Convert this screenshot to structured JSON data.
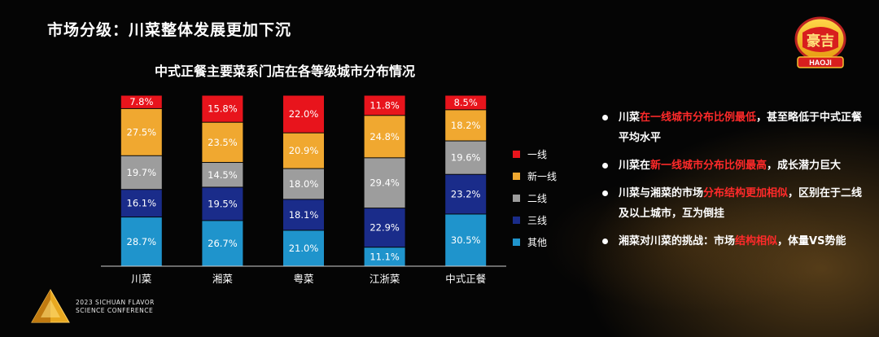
{
  "page_title": "市场分级：川菜整体发展更加下沉",
  "logo": {
    "text": "HAOJI",
    "glyph": "豪吉"
  },
  "conference": {
    "line1": "2023 SICHUAN FLAVOR",
    "line2": "SCIENCE CONFERENCE"
  },
  "colors": {
    "一线": "#e8141c",
    "新一线": "#f0a830",
    "二线": "#9d9d9d",
    "三线": "#1a2c8a",
    "其他": "#1f94cc"
  },
  "chart_data": {
    "type": "bar",
    "stacked": true,
    "title": "中式正餐主要菜系门店在各等级城市分布情况",
    "categories": [
      "川菜",
      "湘菜",
      "粤菜",
      "江浙菜",
      "中式正餐"
    ],
    "series": [
      {
        "name": "其他",
        "values": [
          28.7,
          26.7,
          21.0,
          11.1,
          30.5
        ],
        "labels": [
          "28.7%",
          "26.7%",
          "21.0%",
          "11.1%",
          "30.5%"
        ]
      },
      {
        "name": "三线",
        "values": [
          16.1,
          19.5,
          18.1,
          22.9,
          23.2
        ],
        "labels": [
          "16.1%",
          "19.5%",
          "18.1%",
          "22.9%",
          "23.2%"
        ]
      },
      {
        "name": "二线",
        "values": [
          19.7,
          14.5,
          18.0,
          29.4,
          19.6
        ],
        "labels": [
          "19.7%",
          "14.5%",
          "18.0%",
          "29.4%",
          "19.6%"
        ]
      },
      {
        "name": "新一线",
        "values": [
          27.5,
          23.5,
          20.9,
          24.8,
          18.2
        ],
        "labels": [
          "27.5%",
          "23.5%",
          "20.9%",
          "24.8%",
          "18.2%"
        ]
      },
      {
        "name": "一线",
        "values": [
          7.8,
          15.8,
          22.0,
          11.8,
          8.5
        ],
        "labels": [
          "7.8%",
          "15.8%",
          "22.0%",
          "11.8%",
          "8.5%"
        ]
      }
    ],
    "legend": [
      "一线",
      "新一线",
      "二线",
      "三线",
      "其他"
    ],
    "legend_position": "right",
    "ylim": [
      0,
      100
    ]
  },
  "bullets": [
    {
      "parts": [
        {
          "t": "川菜",
          "hl": false
        },
        {
          "t": "在一线城市分布比例最低",
          "hl": true
        },
        {
          "t": "，甚至略低于中式正餐平均水平",
          "hl": false
        }
      ]
    },
    {
      "parts": [
        {
          "t": "川菜在",
          "hl": false
        },
        {
          "t": "新一线城市分布比例最高",
          "hl": true
        },
        {
          "t": "，成长潜力巨大",
          "hl": false
        }
      ]
    },
    {
      "parts": [
        {
          "t": "川菜与湘菜的市场",
          "hl": false
        },
        {
          "t": "分布结构更加相似",
          "hl": true
        },
        {
          "t": "，区别在于二线及以上城市，互为倒挂",
          "hl": false
        }
      ]
    },
    {
      "parts": [
        {
          "t": "湘菜对川菜的挑战：市场",
          "hl": false
        },
        {
          "t": "结构相似",
          "hl": true
        },
        {
          "t": "，体量VS势能",
          "hl": false
        }
      ]
    }
  ]
}
